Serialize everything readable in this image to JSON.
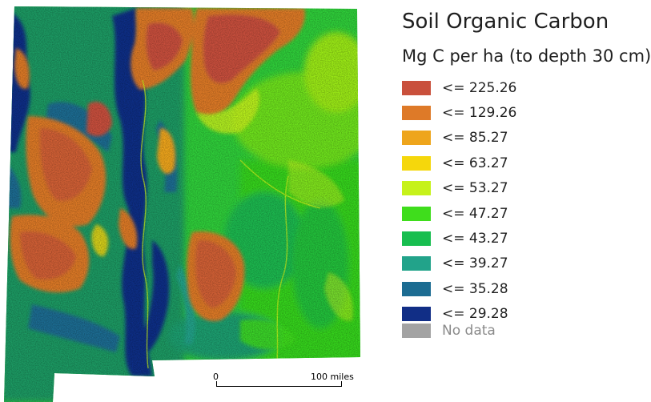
{
  "legend": {
    "title": "Soil Organic Carbon",
    "subtitle": "Mg C per ha (to depth 30 cm)",
    "classes": [
      {
        "label": "<= 225.26",
        "color": "#c9503c"
      },
      {
        "label": "<= 129.26",
        "color": "#de7a28"
      },
      {
        "label": "<= 85.27",
        "color": "#eea51c"
      },
      {
        "label": "<= 63.27",
        "color": "#f5d70c"
      },
      {
        "label": "<= 53.27",
        "color": "#c6f21a"
      },
      {
        "label": "<= 47.27",
        "color": "#3fdd1c"
      },
      {
        "label": "<= 43.27",
        "color": "#17be4f"
      },
      {
        "label": "<= 39.27",
        "color": "#22a38a"
      },
      {
        "label": "<= 35.28",
        "color": "#1c6c92"
      },
      {
        "label": "<= 29.28",
        "color": "#112e86"
      }
    ],
    "nodata": {
      "label": "No data",
      "color": "#a3a3a3"
    }
  },
  "scalebar": {
    "start_label": "0",
    "end_label": "100 miles"
  }
}
